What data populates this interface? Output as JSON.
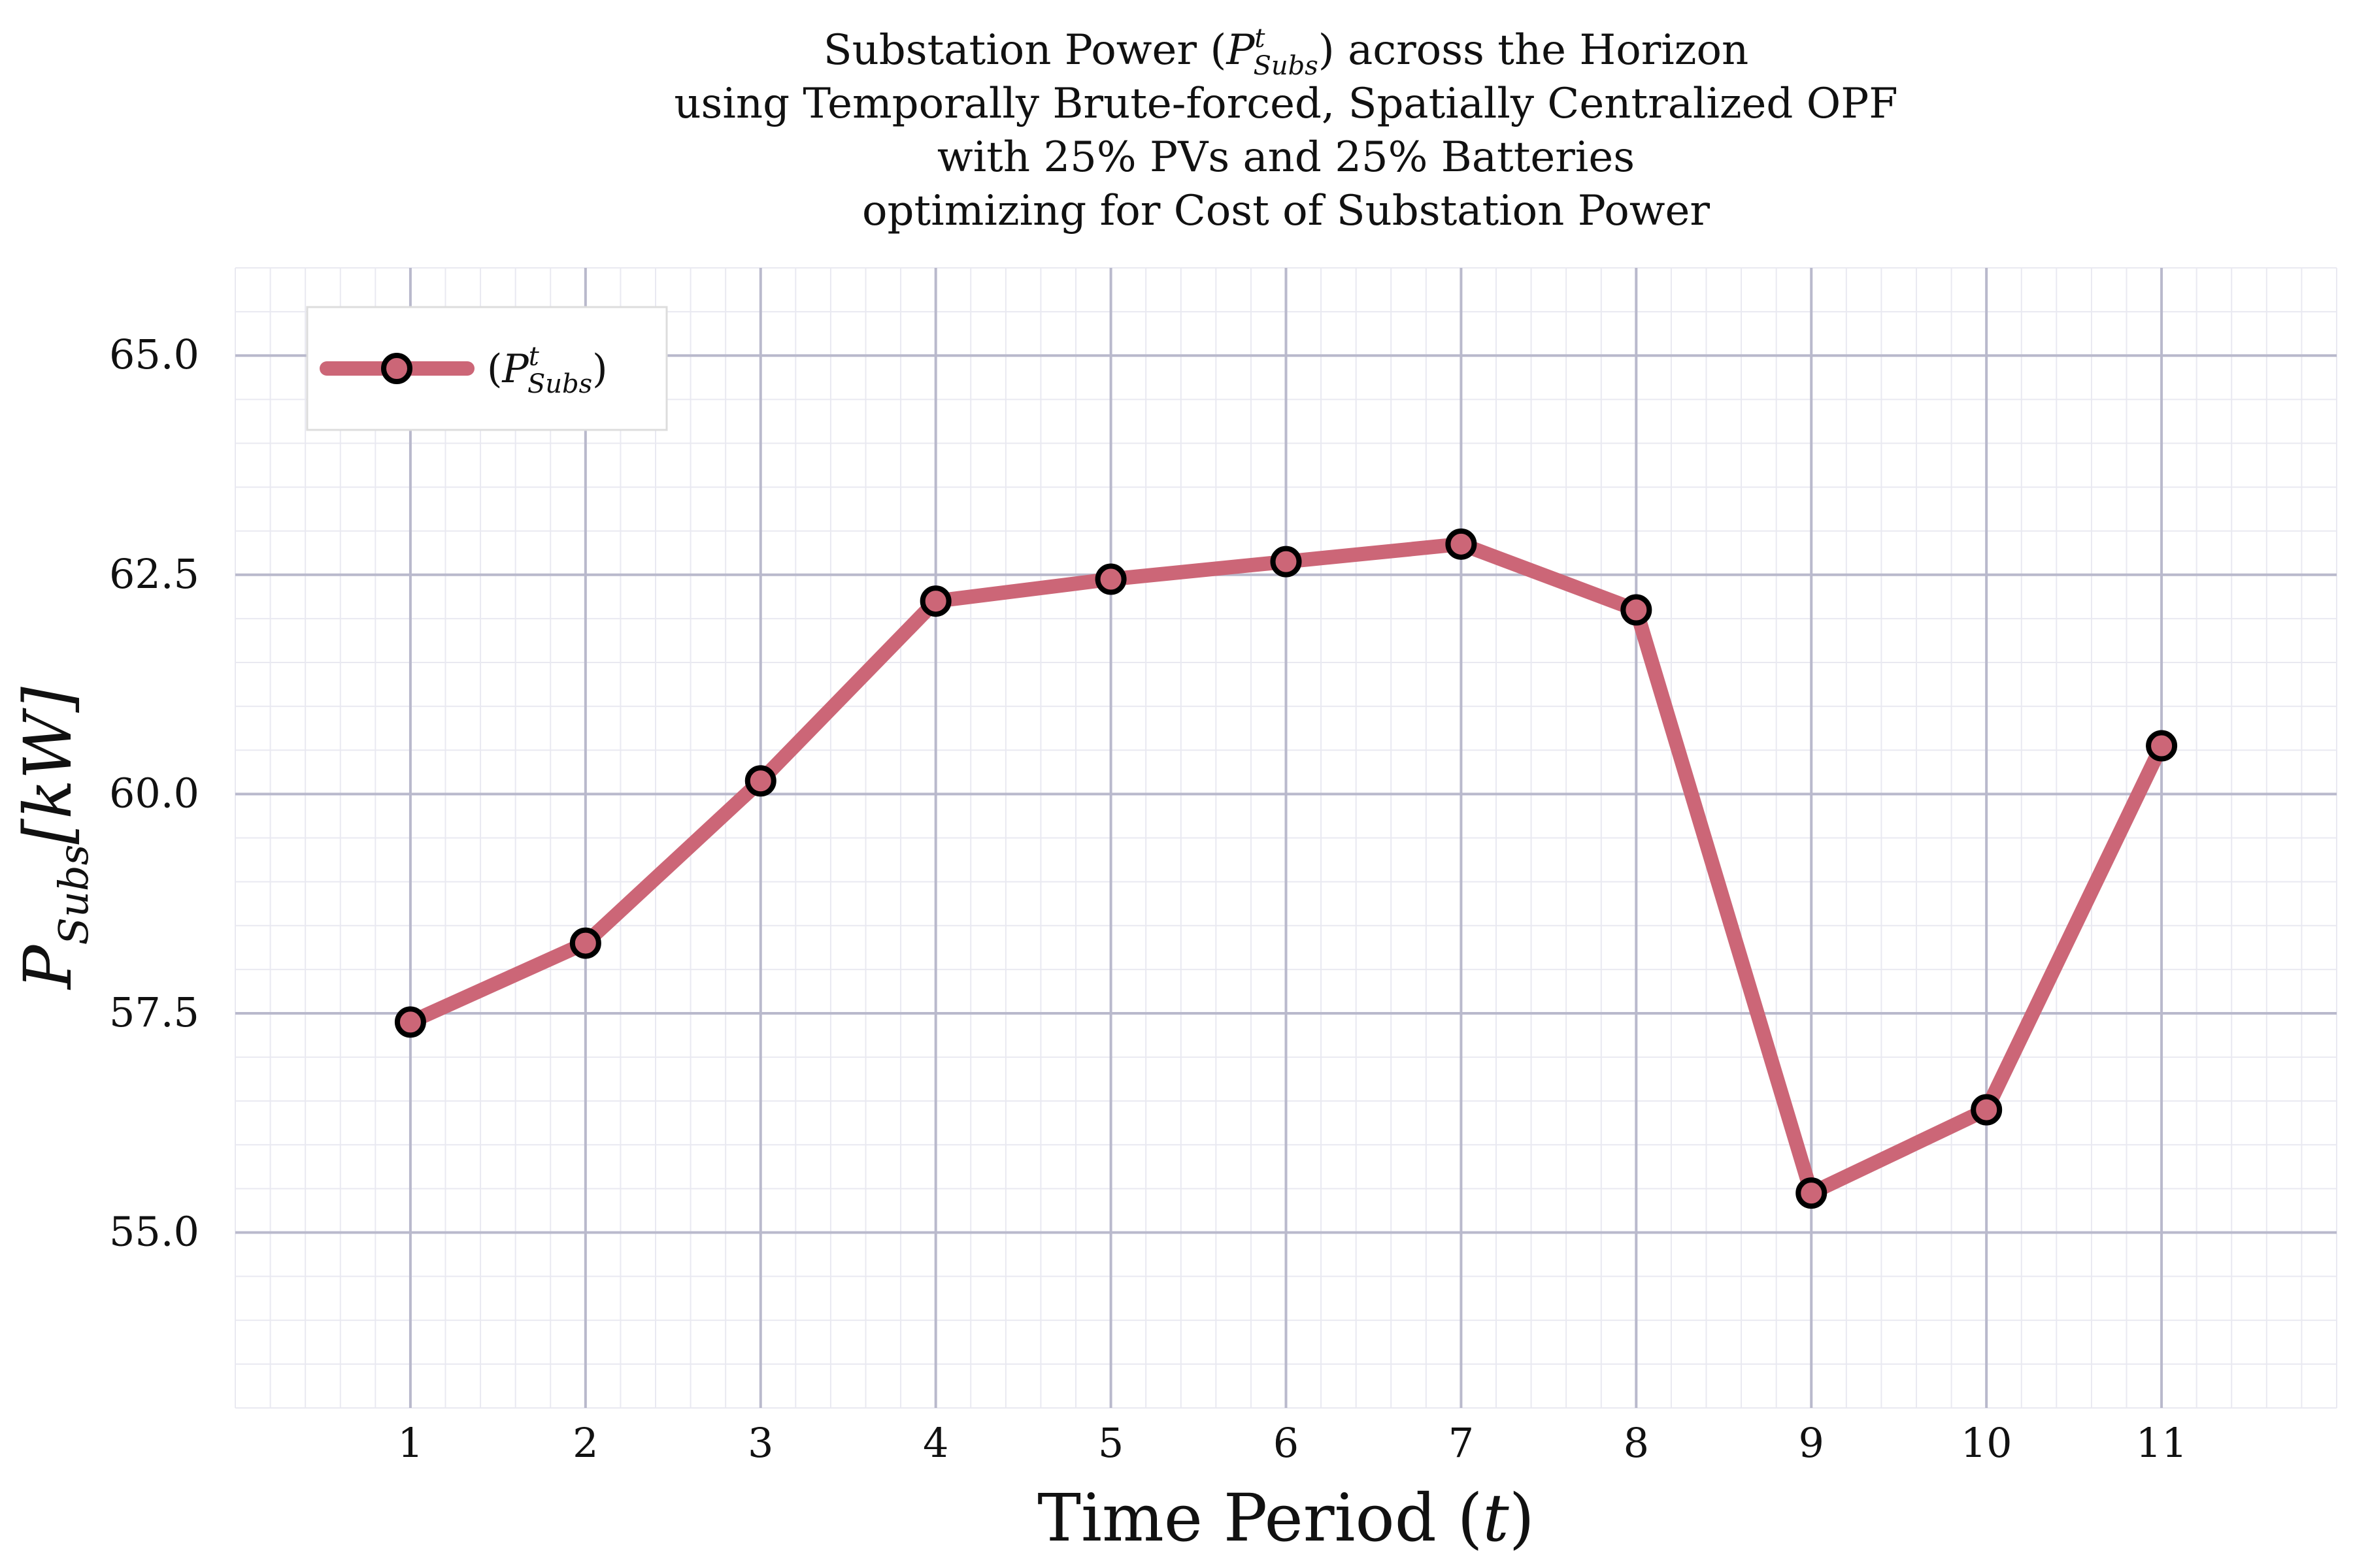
{
  "chart_data": {
    "type": "line",
    "title_lines": [
      {
        "before": "Substation Power (",
        "symbol": "P",
        "sup": "t",
        "sub": "Subs",
        "after": ") across the Horizon"
      },
      {
        "text": "using Temporally Brute-forced, Spatially Centralized OPF"
      },
      {
        "text": "with 25% PVs and 25% Batteries"
      },
      {
        "text": "optimizing for Cost of Substation Power"
      }
    ],
    "xlabel": {
      "text": "Time Period (",
      "symbol": "t",
      "after": ")"
    },
    "ylabel": {
      "symbol": "P",
      "sub": "Subs",
      "after": "[kW]"
    },
    "x": [
      1,
      2,
      3,
      4,
      5,
      6,
      7,
      8,
      9,
      10,
      11
    ],
    "x_tick_labels": [
      "1",
      "2",
      "3",
      "4",
      "5",
      "6",
      "7",
      "8",
      "9",
      "10",
      "11"
    ],
    "y_tick_values": [
      55.0,
      57.5,
      60.0,
      62.5,
      65.0
    ],
    "y_tick_labels": [
      "55.0",
      "57.5",
      "60.0",
      "62.5",
      "65.0"
    ],
    "xlim": [
      0,
      12
    ],
    "ylim": [
      53.0,
      66.0
    ],
    "grid": true,
    "legend": {
      "placement": "top-left",
      "entries": [
        {
          "symbol": "P",
          "sup": "t",
          "sub": "Subs"
        }
      ]
    },
    "series": [
      {
        "name": "(P^t_Subs)",
        "color": "#cc6677",
        "marker_edge_color": "#000000",
        "values": [
          57.4,
          58.3,
          60.15,
          62.2,
          62.45,
          62.65,
          62.85,
          62.1,
          55.45,
          56.4,
          60.55
        ]
      }
    ]
  }
}
